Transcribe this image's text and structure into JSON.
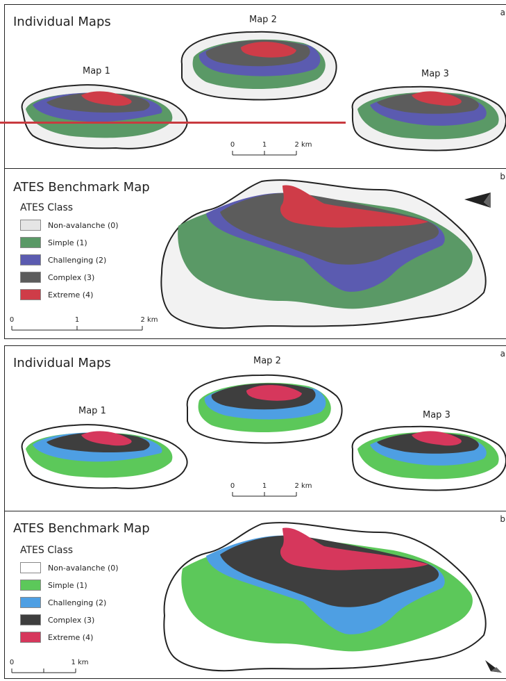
{
  "colors": {
    "set_top": {
      "non_avalanche": "#e5e5e5",
      "simple": "#5a9966",
      "challenging": "#5b5bb0",
      "complex": "#5c5c5c",
      "extreme": "#cf3c48"
    },
    "set_bottom": {
      "non_avalanche": "#ffffff",
      "simple": "#5cc85a",
      "challenging": "#4e9fe3",
      "complex": "#3e3e3e",
      "extreme": "#d6375c"
    },
    "annotation_line": "#c83a3f"
  },
  "figure_top": {
    "panel_a": {
      "title": "Individual Maps",
      "letter": "a",
      "maps": [
        {
          "label": "Map 1"
        },
        {
          "label": "Map 2"
        },
        {
          "label": "Map 3"
        }
      ],
      "scale": {
        "ticks": [
          "0",
          "1",
          "2 km"
        ]
      }
    },
    "panel_b": {
      "title": "ATES Benchmark Map",
      "letter": "b",
      "legend_title": "ATES Class",
      "legend": [
        "Non-avalanche (0)",
        "Simple (1)",
        "Challenging (2)",
        "Complex (3)",
        "Extreme (4)"
      ],
      "scale": {
        "ticks": [
          "0",
          "1",
          "2 km"
        ]
      },
      "north_arrow_icon": "north-arrow-icon"
    }
  },
  "figure_bottom": {
    "panel_a": {
      "title": "Individual Maps",
      "letter": "a",
      "maps": [
        {
          "label": "Map 1"
        },
        {
          "label": "Map 2"
        },
        {
          "label": "Map 3"
        }
      ],
      "scale": {
        "ticks": [
          "0",
          "1",
          "2 km"
        ]
      }
    },
    "panel_b": {
      "title": "ATES Benchmark Map",
      "letter": "b",
      "legend_title": "ATES Class",
      "legend": [
        "Non-avalanche (0)",
        "Simple (1)",
        "Challenging (2)",
        "Complex (3)",
        "Extreme (4)"
      ],
      "scale": {
        "ticks": [
          "0",
          "1 km"
        ]
      },
      "north_arrow_icon": "north-arrow-icon"
    }
  }
}
